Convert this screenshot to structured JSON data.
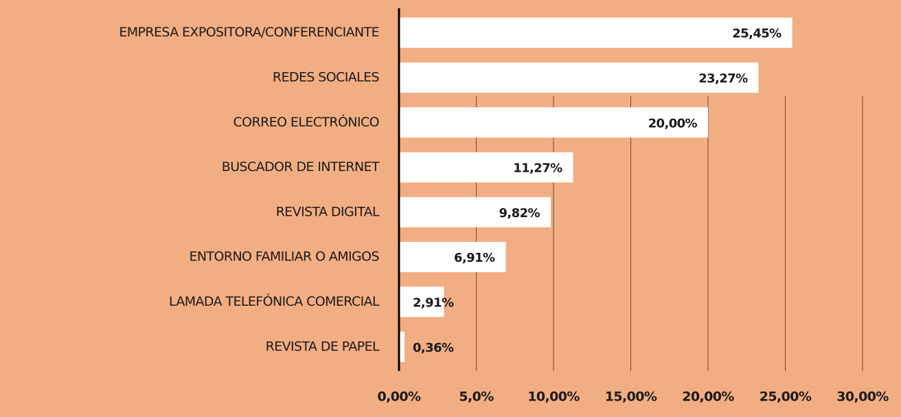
{
  "chart_data": {
    "type": "barh",
    "categories": [
      "EMPRESA EXPOSITORA/CONFERENCIANTE",
      "REDES SOCIALES",
      "CORREO ELECTRÓNICO",
      "BUSCADOR DE INTERNET",
      "REVISTA DIGITAL",
      "ENTORNO FAMILIAR O AMIGOS",
      "LAMADA TELEFÓNICA COMERCIAL",
      "REVISTA DE PAPEL"
    ],
    "values": [
      25.45,
      23.27,
      20.0,
      11.27,
      9.82,
      6.91,
      2.91,
      0.36
    ],
    "value_labels": [
      "25,45%",
      "23,27%",
      "20,00%",
      "11,27%",
      "9,82%",
      "6,91%",
      "2,91%",
      "0,36%"
    ],
    "color": "#ffffff",
    "xlim": [
      0,
      30
    ],
    "xticks": [
      {
        "value": 0,
        "label": "0,00%"
      },
      {
        "value": 5,
        "label": "5,0%"
      },
      {
        "value": 10,
        "label": "10,00%"
      },
      {
        "value": 15,
        "label": "15,00%"
      },
      {
        "value": 20,
        "label": "20,00%"
      },
      {
        "value": 25,
        "label": "25,00%"
      },
      {
        "value": 30,
        "label": "30,00%"
      }
    ],
    "grid": true
  }
}
